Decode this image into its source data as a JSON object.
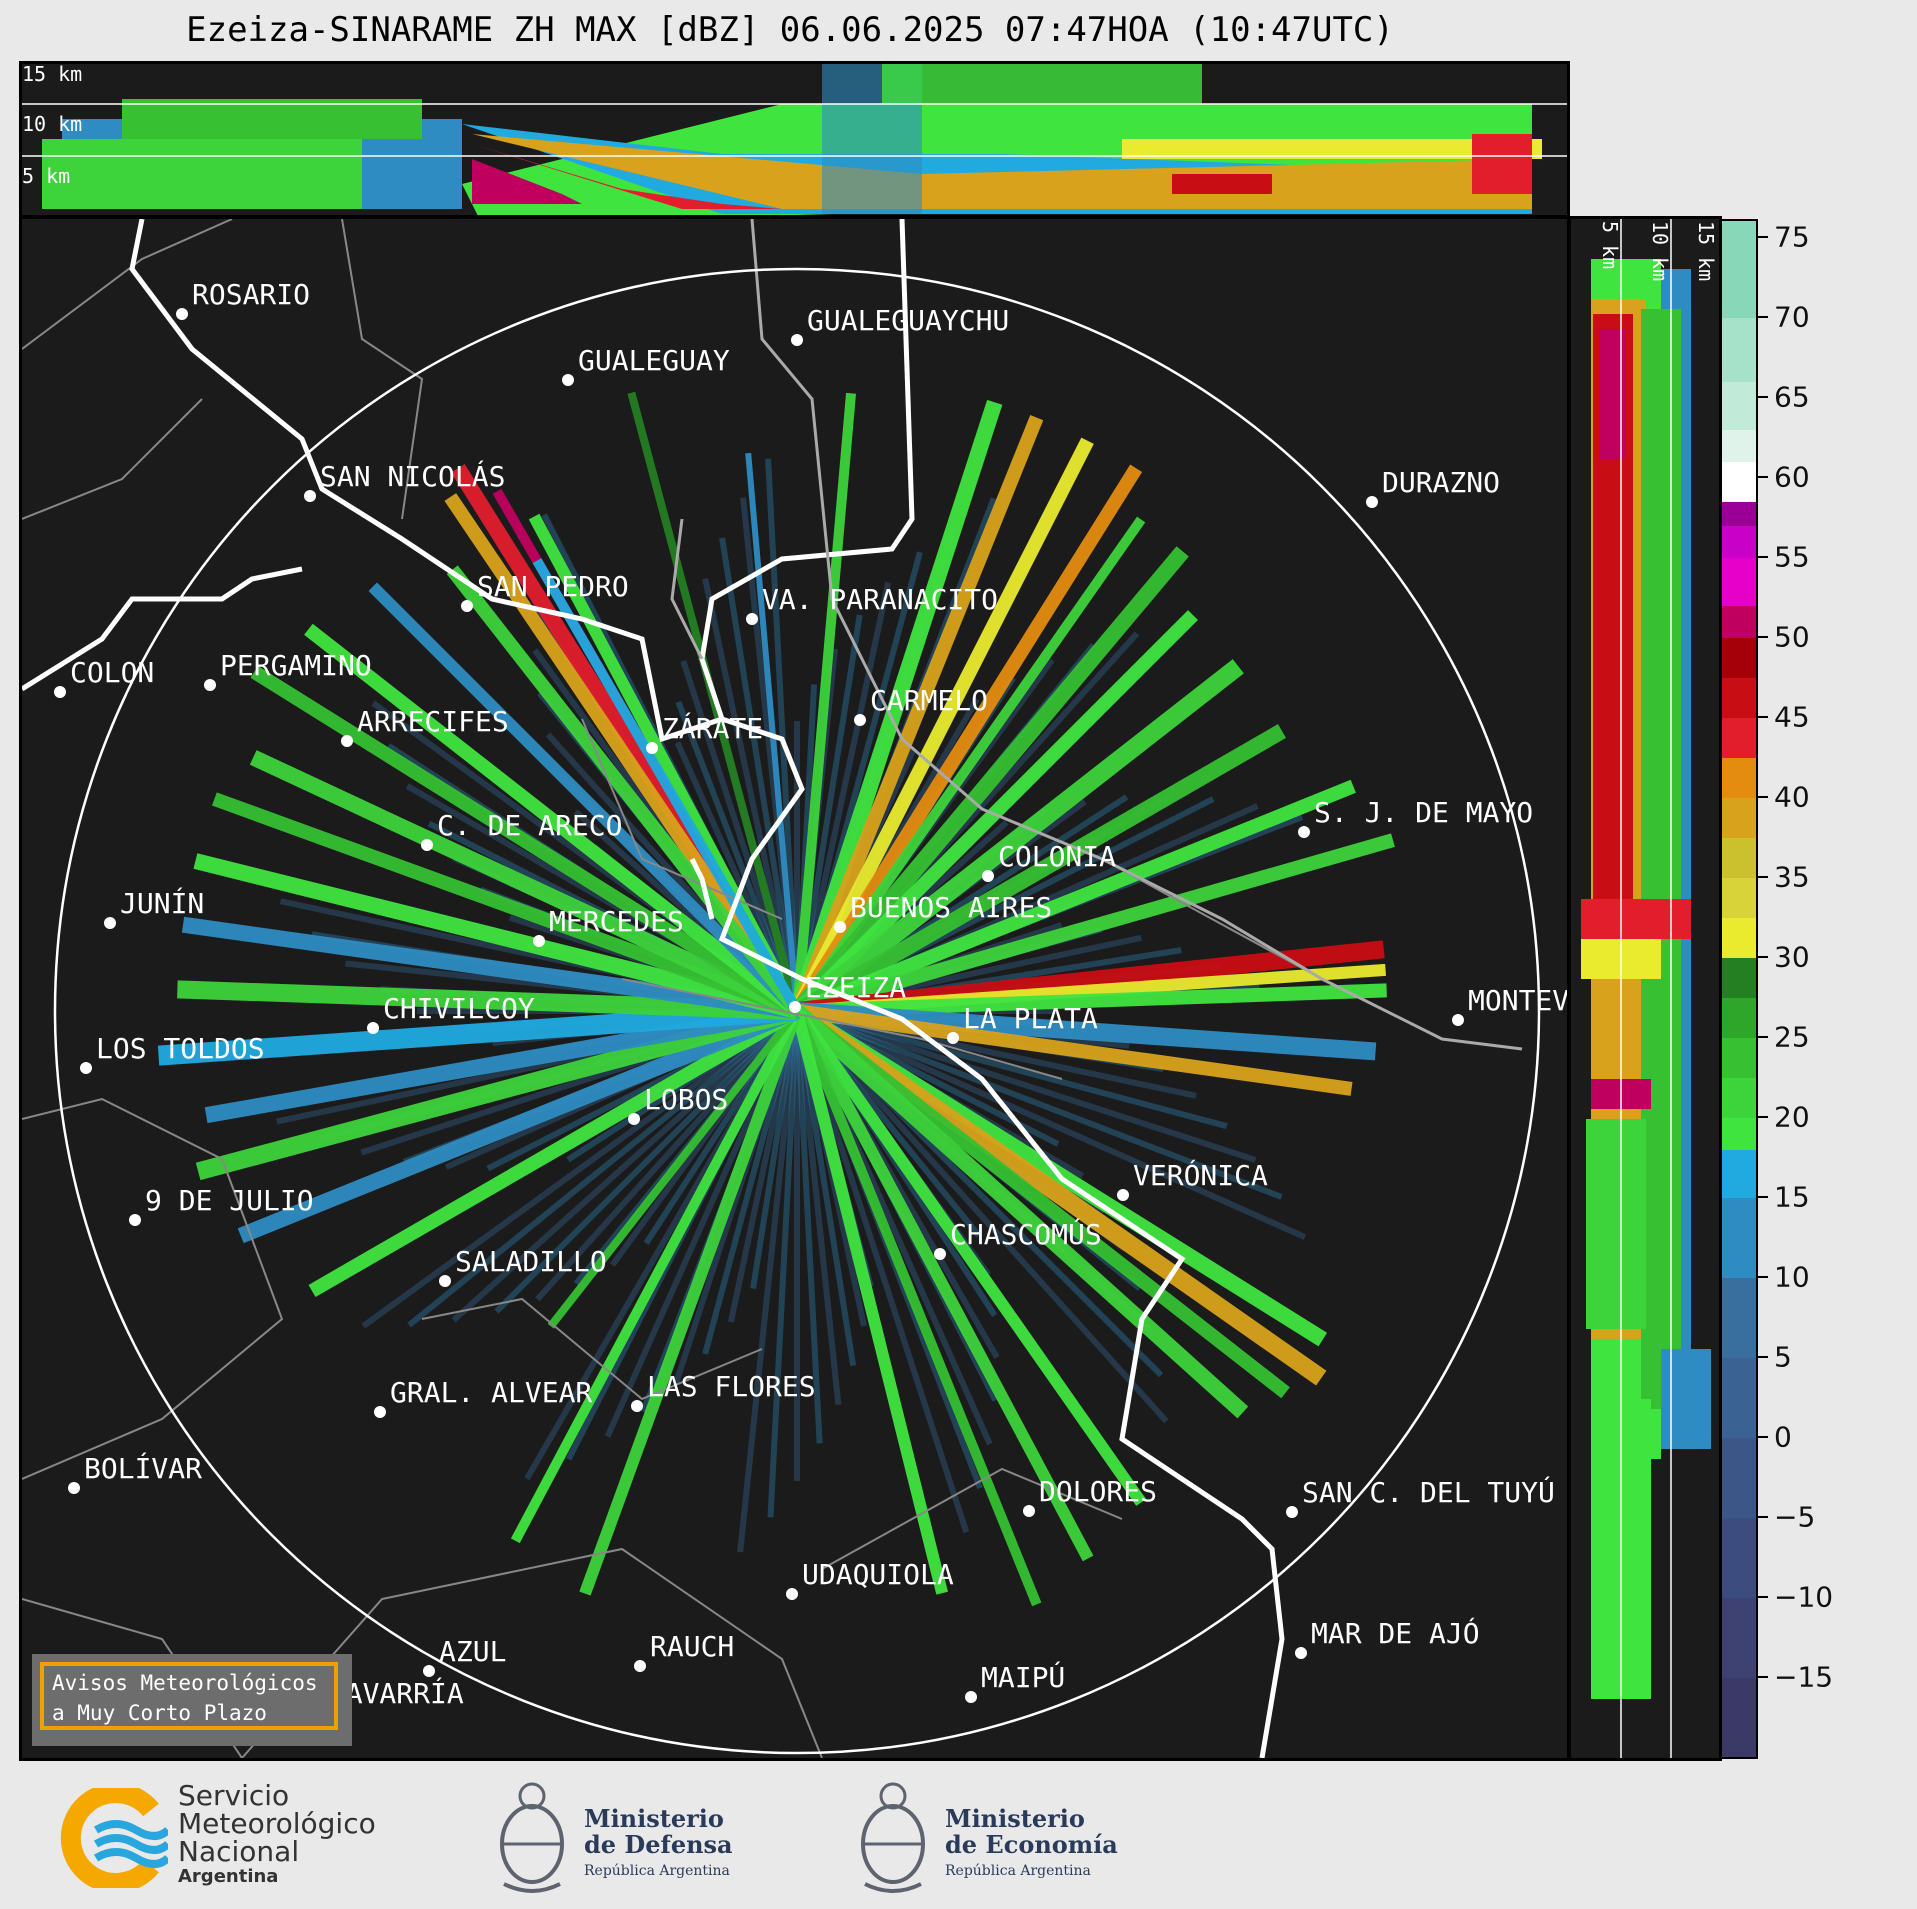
{
  "title": "Ezeiza-SINARAME ZH MAX [dBZ] 06.06.2025 07:47HOA (10:47UTC)",
  "top_panel": {
    "height_labels": [
      "15 km",
      "10 km",
      "5 km"
    ]
  },
  "side_panel": {
    "height_labels": [
      "5 km",
      "10 km",
      "15 km"
    ]
  },
  "cities": [
    {
      "name": "ROSARIO"
    },
    {
      "name": "GUALEGUAYCHU"
    },
    {
      "name": "GUALEGUAY"
    },
    {
      "name": "SAN NICOLÁS"
    },
    {
      "name": "DURAZNO"
    },
    {
      "name": "SAN PEDRO"
    },
    {
      "name": "VA. PARANACITO"
    },
    {
      "name": "COLON"
    },
    {
      "name": "PERGAMINO"
    },
    {
      "name": "CARMELO"
    },
    {
      "name": "ARRECIFES"
    },
    {
      "name": "ZÁRATE"
    },
    {
      "name": "S. J. DE MAYO"
    },
    {
      "name": "C. DE ARECO"
    },
    {
      "name": "COLONIA"
    },
    {
      "name": "JUNÍN"
    },
    {
      "name": "BUENOS AIRES"
    },
    {
      "name": "MERCEDES"
    },
    {
      "name": "EZEIZA"
    },
    {
      "name": "MONTEVIDEO"
    },
    {
      "name": "CHIVILCOY"
    },
    {
      "name": "LA PLATA"
    },
    {
      "name": "LOS TOLDOS"
    },
    {
      "name": "LOBOS"
    },
    {
      "name": "VERÓNICA"
    },
    {
      "name": "9 DE JULIO"
    },
    {
      "name": "CHASCOMÚS"
    },
    {
      "name": "SALADILLO"
    },
    {
      "name": "GRAL. ALVEAR"
    },
    {
      "name": "LAS FLORES"
    },
    {
      "name": "BOLÍVAR"
    },
    {
      "name": "DOLORES"
    },
    {
      "name": "SAN C. DEL TUYÚ"
    },
    {
      "name": "UDAQUIOLA"
    },
    {
      "name": "MAR DE AJÓ"
    },
    {
      "name": "AZUL"
    },
    {
      "name": "RAUCH"
    },
    {
      "name": "OLAVARRÍA"
    },
    {
      "name": "MAIPÚ"
    }
  ],
  "colorbar": {
    "unit": "dBZ",
    "tick_labels": [
      "75",
      "70",
      "65",
      "60",
      "55",
      "50",
      "45",
      "40",
      "35",
      "30",
      "25",
      "20",
      "15",
      "10",
      "5",
      "0",
      "−5",
      "−10",
      "−15"
    ],
    "range": [
      -20,
      76
    ],
    "segments": [
      {
        "from": -20,
        "to": -15,
        "color": "#3b3a66"
      },
      {
        "from": -15,
        "to": -10,
        "color": "#3e4272"
      },
      {
        "from": -10,
        "to": -5,
        "color": "#3d4c7e"
      },
      {
        "from": -5,
        "to": 0,
        "color": "#3c5688"
      },
      {
        "from": 0,
        "to": 5,
        "color": "#3a6292"
      },
      {
        "from": 5,
        "to": 10,
        "color": "#386f9e"
      },
      {
        "from": 10,
        "to": 15,
        "color": "#2f8cc2"
      },
      {
        "from": 15,
        "to": 18,
        "color": "#20aadf"
      },
      {
        "from": 18,
        "to": 20,
        "color": "#3fe43f"
      },
      {
        "from": 20,
        "to": 22.5,
        "color": "#3dd33b"
      },
      {
        "from": 22.5,
        "to": 25,
        "color": "#36c032"
      },
      {
        "from": 25,
        "to": 27.5,
        "color": "#2ea62a"
      },
      {
        "from": 27.5,
        "to": 30,
        "color": "#247f22"
      },
      {
        "from": 30,
        "to": 32.5,
        "color": "#eaea2e"
      },
      {
        "from": 32.5,
        "to": 35,
        "color": "#d9d33a"
      },
      {
        "from": 35,
        "to": 37.5,
        "color": "#cbc02e"
      },
      {
        "from": 37.5,
        "to": 40,
        "color": "#d8a21c"
      },
      {
        "from": 40,
        "to": 42.5,
        "color": "#e38c10"
      },
      {
        "from": 42.5,
        "to": 45,
        "color": "#e21d2c"
      },
      {
        "from": 45,
        "to": 47.5,
        "color": "#c90d14"
      },
      {
        "from": 47.5,
        "to": 50,
        "color": "#a5000a"
      },
      {
        "from": 50,
        "to": 52,
        "color": "#c0005e"
      },
      {
        "from": 52,
        "to": 55,
        "color": "#e600c8"
      },
      {
        "from": 55,
        "to": 57,
        "color": "#c800c8"
      },
      {
        "from": 57,
        "to": 58.5,
        "color": "#9a0095"
      },
      {
        "from": 58.5,
        "to": 61,
        "color": "#ffffff"
      },
      {
        "from": 61,
        "to": 63,
        "color": "#dff3ea"
      },
      {
        "from": 63,
        "to": 66,
        "color": "#c2ead9"
      },
      {
        "from": 66,
        "to": 70,
        "color": "#a6e2c9"
      },
      {
        "from": 70,
        "to": 76,
        "color": "#86d8b8"
      }
    ]
  },
  "avisos": {
    "line1": "Avisos Meteorológicos",
    "line2": "a Muy Corto Plazo"
  },
  "logos": {
    "smn": {
      "line1": "Servicio",
      "line2": "Meteorológico",
      "line3": "Nacional",
      "line4": "Argentina"
    },
    "defensa": {
      "line1": "Ministerio",
      "line2": "de Defensa",
      "line3": "República Argentina"
    },
    "economia": {
      "line1": "Ministerio",
      "line2": "de Economía",
      "line3": "República Argentina"
    }
  },
  "colors": {
    "background": "#1b1b1b",
    "range_ring": "#ffffff",
    "coast": "#ffffff",
    "borders": "#888888"
  }
}
